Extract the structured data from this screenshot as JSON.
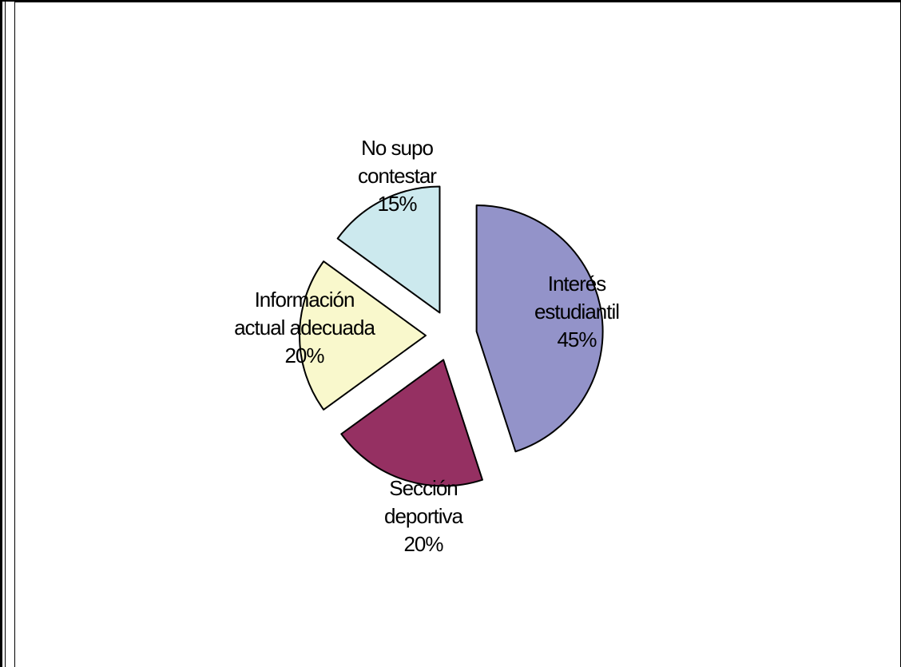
{
  "chart_data": {
    "type": "pie",
    "exploded": true,
    "start_angle_deg": 0,
    "direction": "clockwise",
    "slices": [
      {
        "label_lines": [
          "Interés",
          "estudiantil",
          "45%"
        ],
        "value": 45,
        "color": "#9393c9"
      },
      {
        "label_lines": [
          "Sección",
          "deportiva",
          "20%"
        ],
        "value": 20,
        "color": "#953062"
      },
      {
        "label_lines": [
          "Información",
          "actual adecuada",
          "20%"
        ],
        "value": 20,
        "color": "#f9f8cc"
      },
      {
        "label_lines": [
          "No supo",
          "contestar",
          "15%"
        ],
        "value": 15,
        "color": "#cce9ee"
      }
    ]
  }
}
